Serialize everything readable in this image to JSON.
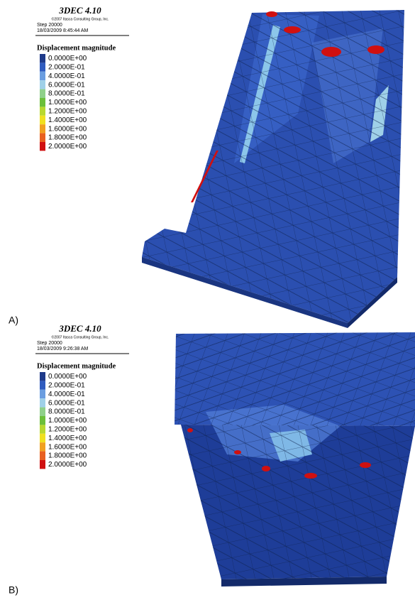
{
  "panels": [
    {
      "label": "A)",
      "title": "3DEC 4.10",
      "copyright": "©2007 Itasca Consulting Group, Inc.",
      "step": "Step 20000",
      "date": "18/03/2009 8:45:44 AM",
      "legend_title": "Displacement magnitude",
      "legend": [
        {
          "label": "0.0000E+00",
          "color": "#1e3a8a"
        },
        {
          "label": "2.0000E-01",
          "color": "#2f5bbf"
        },
        {
          "label": "4.0000E-01",
          "color": "#6a9de0"
        },
        {
          "label": "6.0000E-01",
          "color": "#9fd0e8"
        },
        {
          "label": "8.0000E-01",
          "color": "#8fd08a"
        },
        {
          "label": "1.0000E+00",
          "color": "#6cbf3a"
        },
        {
          "label": "1.2000E+00",
          "color": "#b8d830"
        },
        {
          "label": "1.4000E+00",
          "color": "#f0e020"
        },
        {
          "label": "1.6000E+00",
          "color": "#f0a020"
        },
        {
          "label": "1.8000E+00",
          "color": "#e86020"
        },
        {
          "label": "2.0000E+00",
          "color": "#d01010"
        }
      ]
    },
    {
      "label": "B)",
      "title": "3DEC 4.10",
      "copyright": "©2007 Itasca Consulting Group, Inc.",
      "step": "Step 20000",
      "date": "18/03/2009 9:26:38 AM",
      "legend_title": "Displacement magnitude",
      "legend": [
        {
          "label": "0.0000E+00",
          "color": "#1e3a8a"
        },
        {
          "label": "2.0000E-01",
          "color": "#2f5bbf"
        },
        {
          "label": "4.0000E-01",
          "color": "#6a9de0"
        },
        {
          "label": "6.0000E-01",
          "color": "#9fd0e8"
        },
        {
          "label": "8.0000E-01",
          "color": "#8fd08a"
        },
        {
          "label": "1.0000E+00",
          "color": "#6cbf3a"
        },
        {
          "label": "1.2000E+00",
          "color": "#b8d830"
        },
        {
          "label": "1.4000E+00",
          "color": "#f0e020"
        },
        {
          "label": "1.6000E+00",
          "color": "#f0a020"
        },
        {
          "label": "1.8000E+00",
          "color": "#e86020"
        },
        {
          "label": "2.0000E+00",
          "color": "#d01010"
        }
      ]
    }
  ]
}
